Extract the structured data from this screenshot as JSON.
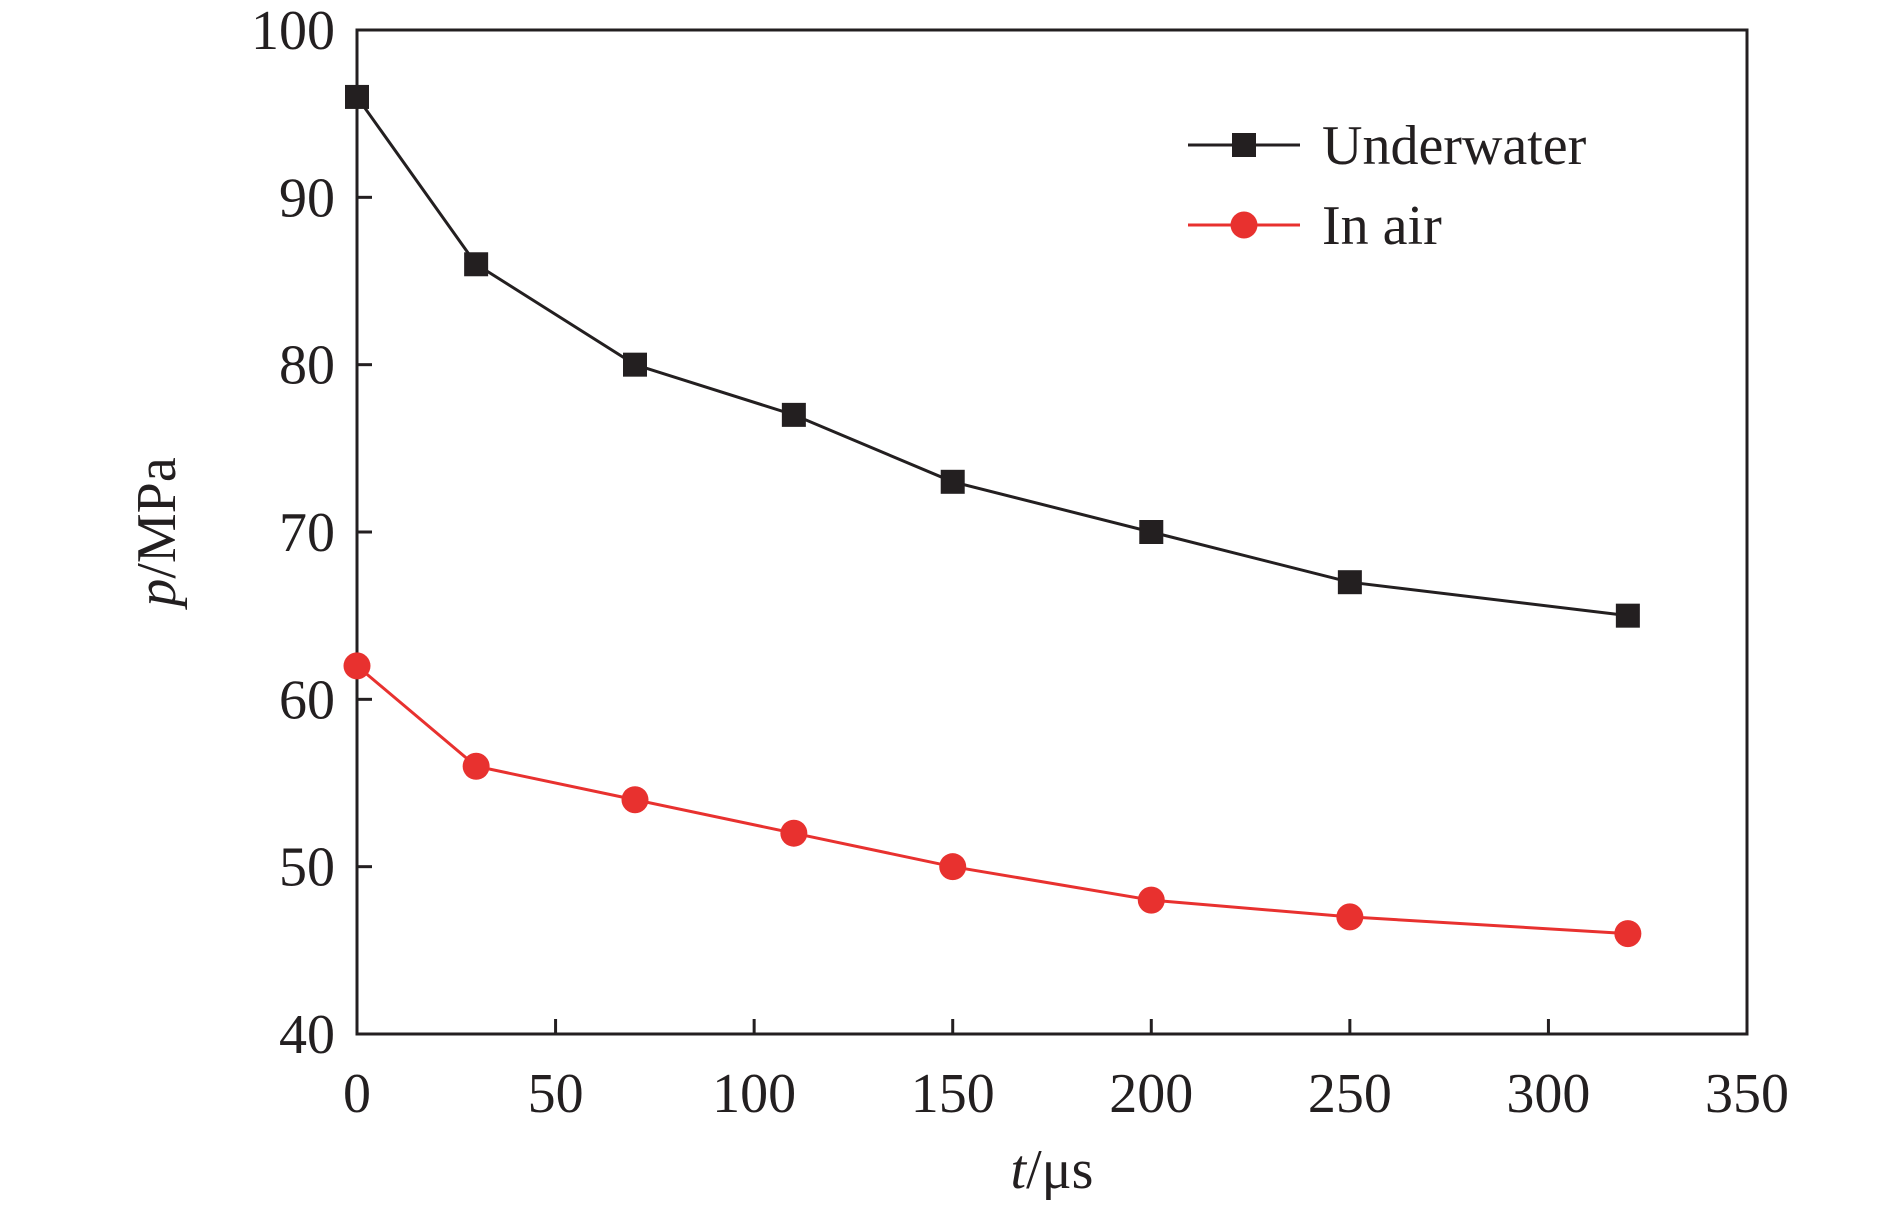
{
  "chart_data": {
    "type": "line",
    "title": "",
    "xlabel": {
      "var": "t",
      "unit": "/μs"
    },
    "ylabel": {
      "var": "p",
      "unit": "/MPa"
    },
    "xlim": [
      0,
      350
    ],
    "ylim": [
      40,
      100
    ],
    "xticks": [
      0,
      50,
      100,
      150,
      200,
      250,
      300,
      350
    ],
    "yticks": [
      40,
      50,
      60,
      70,
      80,
      90,
      100
    ],
    "grid": false,
    "legend_position": "top-right",
    "x": [
      0,
      30,
      70,
      110,
      150,
      200,
      250,
      320
    ],
    "series": [
      {
        "name": "Underwater",
        "marker": "square",
        "color": "#231f20",
        "values": [
          96,
          86,
          80,
          77,
          73,
          70,
          67,
          65
        ]
      },
      {
        "name": "In air",
        "marker": "circle",
        "color": "#e8312f",
        "values": [
          62,
          56,
          54,
          52,
          50,
          48,
          47,
          46
        ]
      }
    ]
  }
}
